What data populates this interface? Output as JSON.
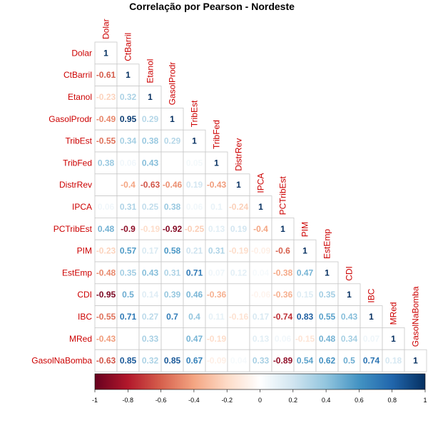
{
  "chart_data": {
    "type": "heatmap",
    "title": "Correlação por Pearson - Nordeste",
    "variables": [
      "Dolar",
      "CtBarril",
      "Etanol",
      "GasolProdr",
      "TribEst",
      "TribFed",
      "DistrRev",
      "IPCA",
      "PCTribEst",
      "PIM",
      "EstEmp",
      "CDI",
      "IBC",
      "MRed",
      "GasolNaBomba"
    ],
    "layout": "lower-triangle",
    "cells": [
      [
        "1"
      ],
      [
        "-0.61",
        "1"
      ],
      [
        "-0.23",
        "0.32",
        "1"
      ],
      [
        "-0.49",
        "0.95",
        "0.29",
        "1"
      ],
      [
        "-0.55",
        "0.34",
        "0.38",
        "0.29",
        "1"
      ],
      [
        "0.38",
        "0.06",
        "0.43",
        "",
        "0.05",
        "1"
      ],
      [
        "",
        "-0.4",
        "-0.63",
        "-0.46",
        "0.19",
        "-0.43",
        "1"
      ],
      [
        "0.06",
        "0.31",
        "0.25",
        "0.38",
        "0.06",
        "0.1",
        "-0.24",
        "1"
      ],
      [
        "0.48",
        "-0.9",
        "-0.19",
        "-0.92",
        "-0.25",
        "0.13",
        "0.19",
        "-0.4",
        "1"
      ],
      [
        "-0.23",
        "0.57",
        "0.17",
        "0.58",
        "0.21",
        "0.31",
        "-0.19",
        "-0.09",
        "-0.6",
        "1"
      ],
      [
        "-0.48",
        "0.35",
        "0.43",
        "0.31",
        "0.71",
        "0.07",
        "0.12",
        "0.04",
        "-0.38",
        "0.47",
        "1"
      ],
      [
        "-0.95",
        "0.5",
        "0.14",
        "0.39",
        "0.46",
        "-0.36",
        "",
        "-0.06",
        "-0.36",
        "0.15",
        "0.35",
        "1"
      ],
      [
        "-0.55",
        "0.71",
        "0.27",
        "0.7",
        "0.4",
        "0.11",
        "-0.16",
        "0.17",
        "-0.74",
        "0.83",
        "0.55",
        "0.43",
        "1"
      ],
      [
        "-0.43",
        "",
        "0.33",
        "",
        "0.47",
        "-0.19",
        "",
        "0.13",
        "0.06",
        "-0.15",
        "0.48",
        "0.34",
        "0.07",
        "1"
      ],
      [
        "-0.63",
        "0.85",
        "0.32",
        "0.85",
        "0.67",
        "-0.09",
        "0.04",
        "0.33",
        "-0.89",
        "0.54",
        "0.62",
        "0.5",
        "0.74",
        "0.18",
        "1"
      ]
    ],
    "colorbar": {
      "range": [
        -1,
        1
      ],
      "ticks": [
        "-1",
        "-0.8",
        "-0.6",
        "-0.4",
        "-0.2",
        "0",
        "0.2",
        "0.4",
        "0.6",
        "0.8",
        "1"
      ]
    },
    "colors": {
      "negative": "#67001f",
      "neutral": "#ffffff",
      "positive": "#053061",
      "label": "#cc0000",
      "grid": "#c8c8c8"
    },
    "grid": true
  }
}
